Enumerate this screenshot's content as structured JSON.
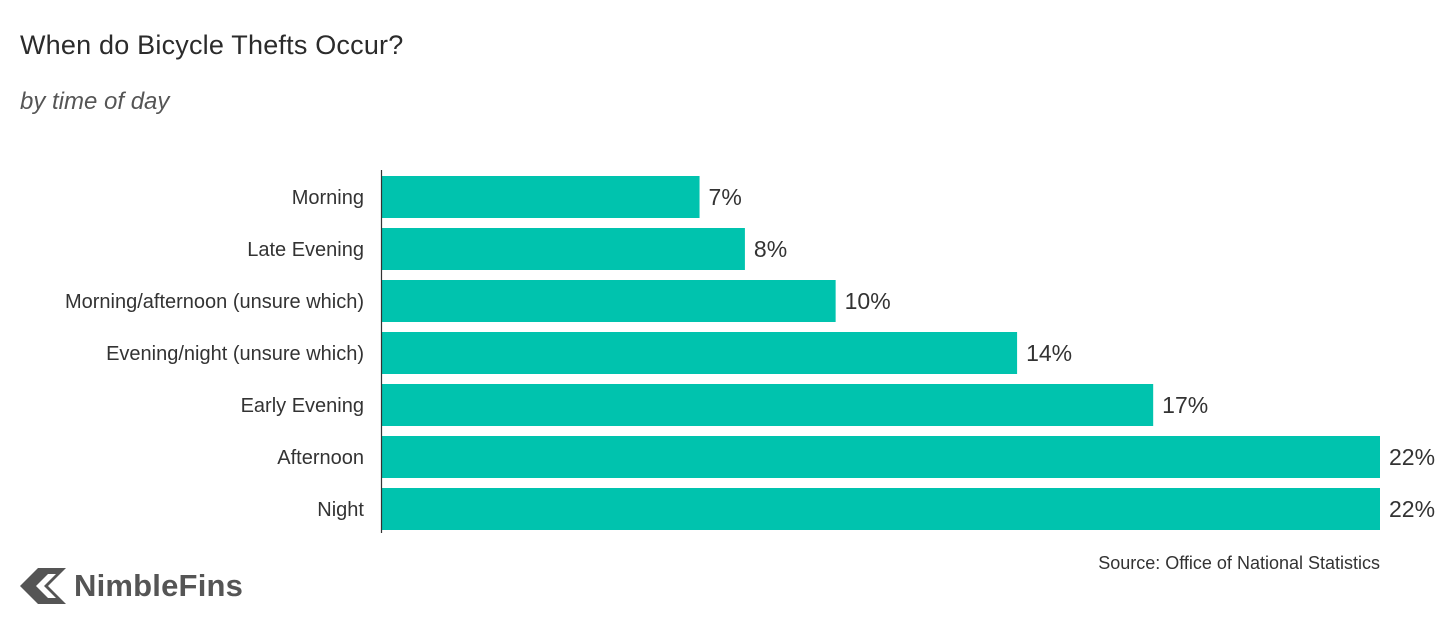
{
  "chart_data": {
    "type": "bar",
    "orientation": "horizontal",
    "title": "When do Bicycle Thefts Occur?",
    "subtitle": "by time of day",
    "categories": [
      "Morning",
      "Late Evening",
      "Morning/afternoon (unsure which)",
      "Evening/night (unsure which)",
      "Early Evening",
      "Afternoon",
      "Night"
    ],
    "values": [
      7,
      8,
      10,
      14,
      17,
      22,
      22
    ],
    "value_labels": [
      "7%",
      "8%",
      "10%",
      "14%",
      "17%",
      "22%",
      "22%"
    ],
    "unit": "%",
    "xlim": [
      0,
      22
    ],
    "grid": false,
    "legend": "none",
    "bar_color": "#00c3ae",
    "axis_color": "#333333"
  },
  "source": "Source: Office of National Statistics",
  "brand": {
    "name": "NimbleFins",
    "logo_icon": "nimblefins-arrow-logo-icon",
    "logo_color": "#555555"
  }
}
